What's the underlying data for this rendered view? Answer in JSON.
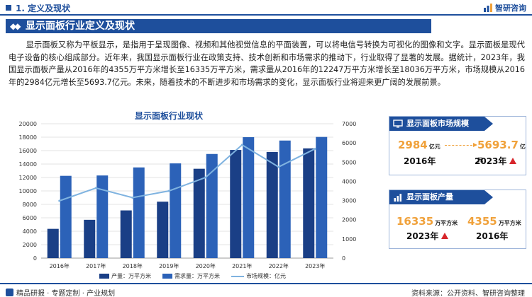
{
  "header": {
    "section_title": "1. 定义及现状",
    "brand": "智研咨询"
  },
  "title_bar": "显示面板行业定义及现状",
  "intro": "显示面板又称为平板显示，是指用于呈现图像、视频和其他视觉信息的平面装置，可以将电信号转换为可视化的图像和文字。显示面板是现代电子设备的核心组成部分。近年来，我国显示面板行业在政策支持、技术创新和市场需求的推动下，行业取得了显著的发展。据统计，2023年，我国显示面板产量从2016年的4355万平方米增长至16335万平方米，需求量从2016年的12247万平方米增长至18036万平方米，市场规模从2016年的2984亿元增长至5693.7亿元。未来，随着技术的不断进步和市场需求的变化，显示面板行业将迎来更广阔的发展前景。",
  "chart_data": {
    "type": "bar",
    "title": "显示面板行业现状",
    "categories": [
      "2016年",
      "2017年",
      "2018年",
      "2019年",
      "2020年",
      "2021年",
      "2022年",
      "2023年"
    ],
    "series": [
      {
        "name": "产量：万平方米",
        "type": "bar",
        "axis": "left",
        "color": "#1a3f86",
        "values": [
          4355,
          5700,
          7100,
          8400,
          13300,
          16100,
          15800,
          16335
        ]
      },
      {
        "name": "需求量：万平方米",
        "type": "bar",
        "axis": "left",
        "color": "#2c62b8",
        "values": [
          12247,
          12300,
          13500,
          14100,
          15500,
          18000,
          17500,
          18036
        ]
      },
      {
        "name": "市场规模：亿元",
        "type": "line",
        "axis": "right",
        "color": "#7fb3e0",
        "values": [
          2984,
          3650,
          3150,
          3500,
          4200,
          5900,
          4750,
          5693.7
        ]
      }
    ],
    "y_left": {
      "min": 0,
      "max": 20000,
      "ticks": [
        0,
        2000,
        4000,
        6000,
        8000,
        10000,
        12000,
        14000,
        16000,
        18000,
        20000
      ]
    },
    "y_right": {
      "min": 0,
      "max": 7000,
      "ticks": [
        0,
        1000,
        2000,
        3000,
        4000,
        5000,
        6000,
        7000
      ]
    },
    "legend_position": "bottom",
    "grid": true
  },
  "market_card": {
    "title": "显示面板市场规模",
    "start_value": "2984",
    "start_unit": "亿元",
    "start_year": "2016年",
    "end_value": "5693.7",
    "end_unit": "亿元",
    "end_year": "2023年"
  },
  "output_card": {
    "title": "显示面板产量",
    "left_value": "16335",
    "left_unit": "万平方米",
    "left_year": "2023年",
    "right_value": "4355",
    "right_unit": "万平方米",
    "right_year": "2016年"
  },
  "footer": {
    "left": "精品研报 · 专题定制 · 产业规划",
    "right": "资料来源：公开资料、智研咨询整理"
  },
  "colors": {
    "primary": "#1e4f9c",
    "accent_orange": "#f0a13a",
    "arrow_red": "#d7262b"
  }
}
